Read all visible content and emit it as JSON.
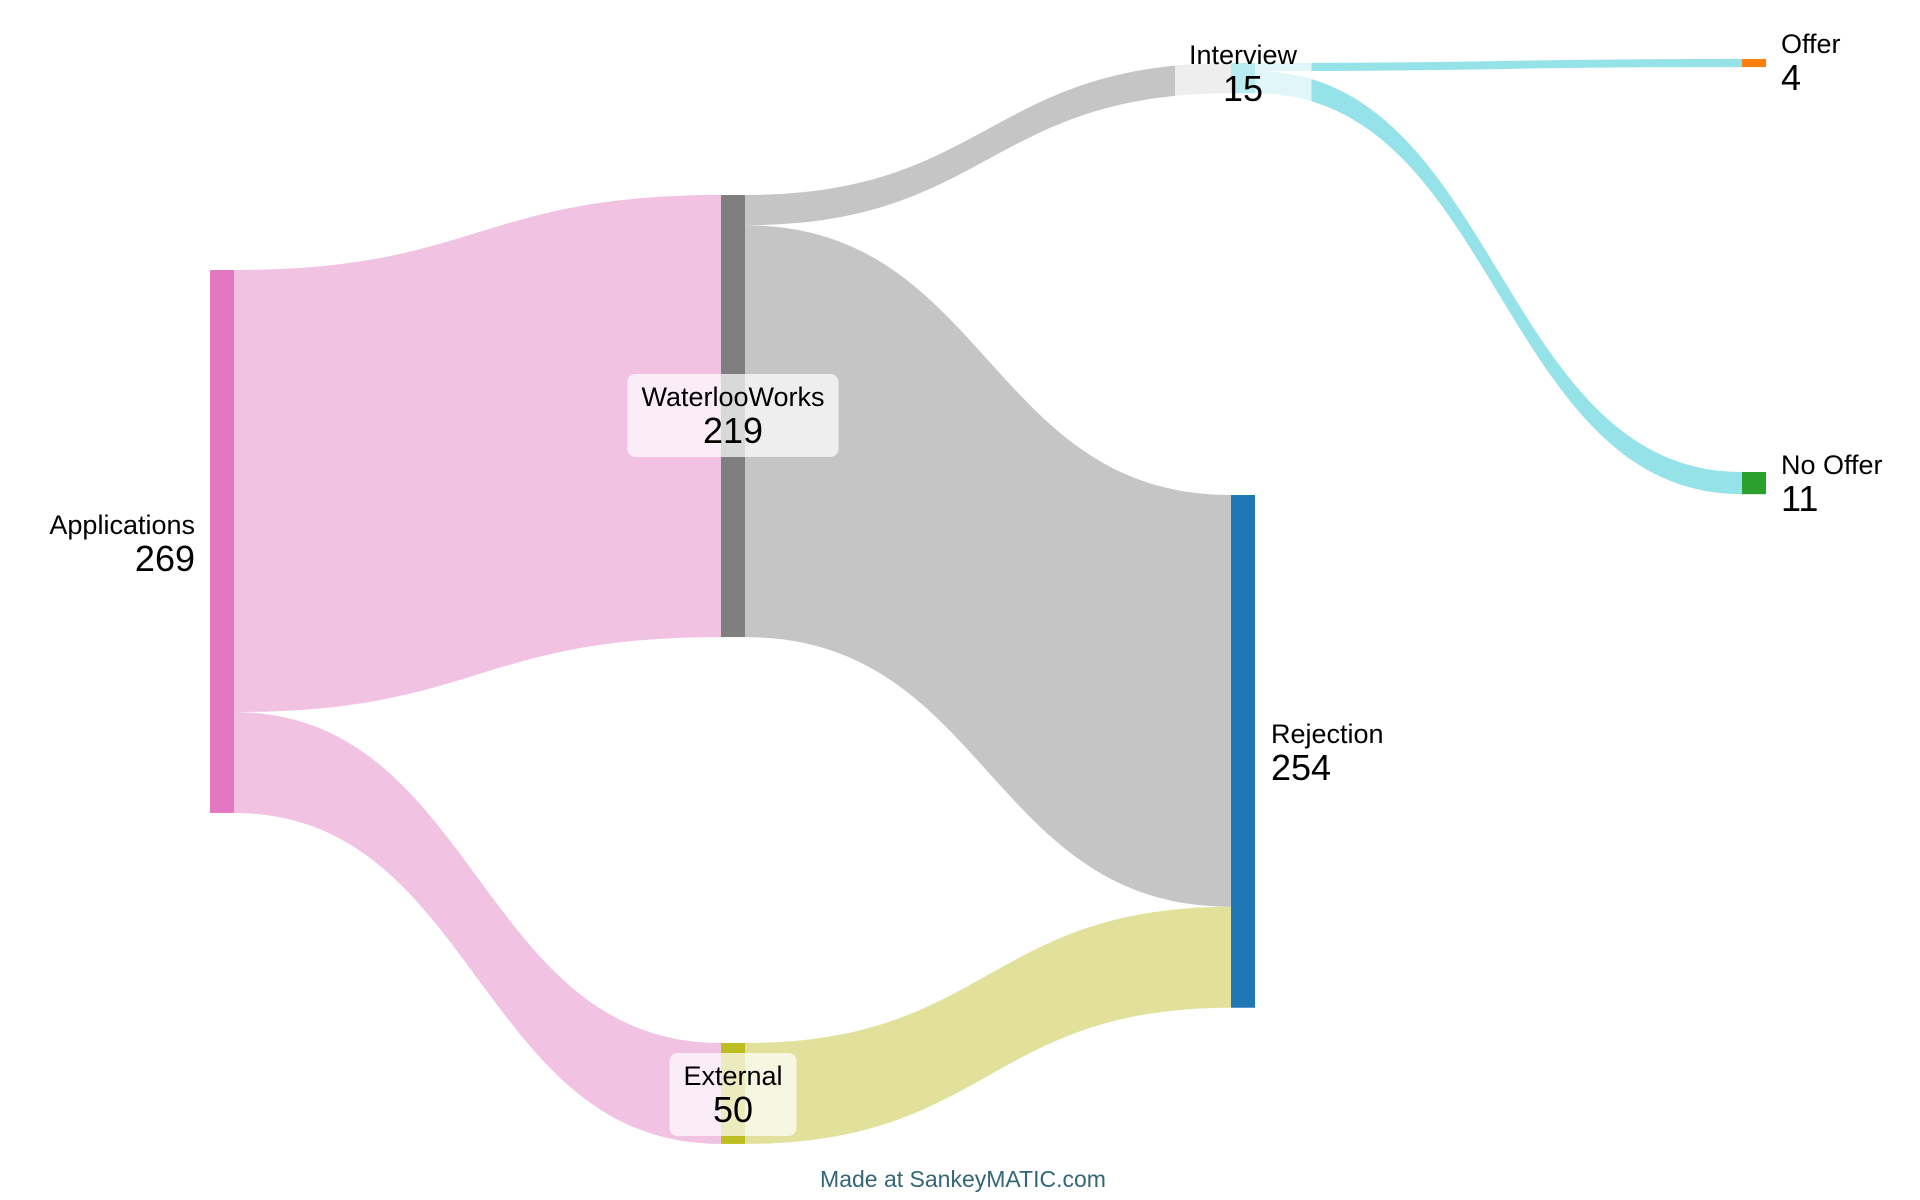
{
  "chart_data": {
    "type": "sankey",
    "nodes": [
      {
        "id": "applications",
        "name": "Applications",
        "value": "269",
        "color": "#e377c2"
      },
      {
        "id": "waterlooworks",
        "name": "WaterlooWorks",
        "value": "219",
        "color": "#7f7f7f"
      },
      {
        "id": "external",
        "name": "External",
        "value": "50",
        "color": "#bcbd22"
      },
      {
        "id": "interview",
        "name": "Interview",
        "value": "15",
        "color": "#17becf"
      },
      {
        "id": "rejection",
        "name": "Rejection",
        "value": "254",
        "color": "#1f77b4"
      },
      {
        "id": "offer",
        "name": "Offer",
        "value": "4",
        "color": "#ff7f0e"
      },
      {
        "id": "no_offer",
        "name": "No Offer",
        "value": "11",
        "color": "#2ca02c"
      }
    ],
    "links": [
      {
        "source": "applications",
        "target": "waterlooworks",
        "value": 219
      },
      {
        "source": "applications",
        "target": "external",
        "value": 50
      },
      {
        "source": "waterlooworks",
        "target": "interview",
        "value": 15
      },
      {
        "source": "waterlooworks",
        "target": "rejection",
        "value": 204
      },
      {
        "source": "external",
        "target": "rejection",
        "value": 50
      },
      {
        "source": "interview",
        "target": "offer",
        "value": 4
      },
      {
        "source": "interview",
        "target": "no_offer",
        "value": 11
      }
    ]
  },
  "credit": {
    "text": "Made at SankeyMATIC.com",
    "color": "#336677"
  }
}
